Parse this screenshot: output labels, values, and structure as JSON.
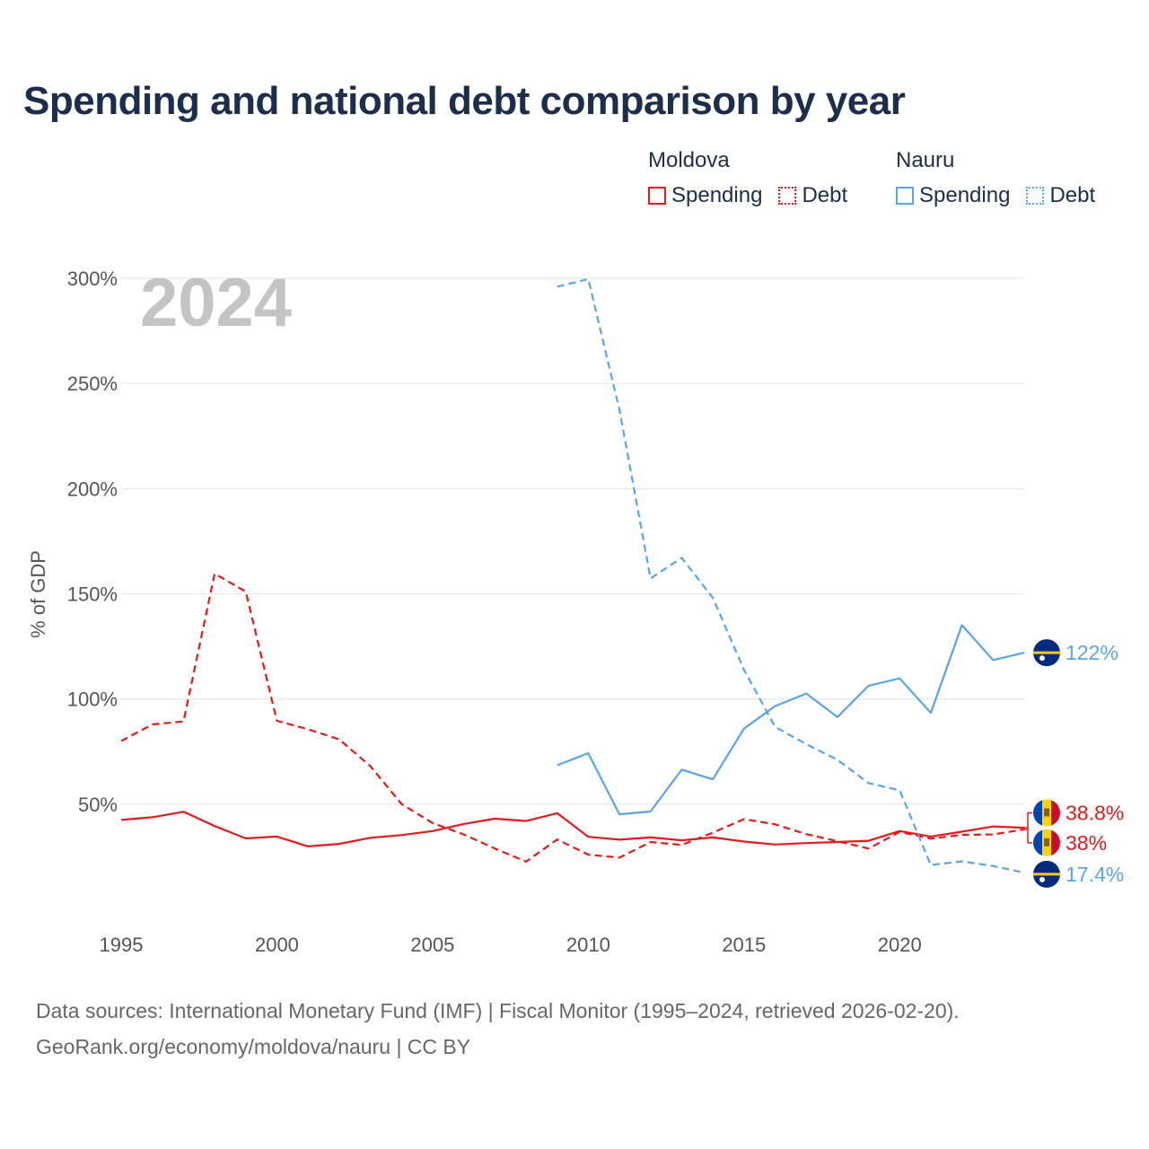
{
  "header": {
    "title": "Spending and national debt comparison by year"
  },
  "legend": {
    "moldova": {
      "name": "Moldova",
      "spending_label": "Spending",
      "debt_label": "Debt",
      "color": "#e8191b"
    },
    "nauru": {
      "name": "Nauru",
      "spending_label": "Spending",
      "debt_label": "Debt",
      "color": "#5ba4e6"
    }
  },
  "footer": {
    "line1": "Data sources: International Monetary Fund (IMF) | Fiscal Monitor (1995–2024, retrieved 2026-02-20).",
    "line2": "GeoRank.org/economy/moldova/nauru | CC BY"
  },
  "chart_data": {
    "type": "line",
    "year_watermark": "2024",
    "ylabel": "% of GDP",
    "xlim": [
      1995,
      2024
    ],
    "ylim": [
      0,
      310
    ],
    "x_ticks": [
      1995,
      2000,
      2005,
      2010,
      2015,
      2020
    ],
    "x_tick_labels": [
      "1995",
      "2000",
      "2005",
      "2010",
      "2015",
      "2020"
    ],
    "y_ticks": [
      50,
      100,
      150,
      200,
      250,
      300
    ],
    "y_tick_labels": [
      "50%",
      "100%",
      "150%",
      "200%",
      "250%",
      "300%"
    ],
    "series": [
      {
        "name": "Moldova Spending",
        "country": "moldova",
        "style": "solid",
        "color": "#e8191b",
        "x": [
          1995,
          1996,
          1997,
          1998,
          1999,
          2000,
          2001,
          2002,
          2003,
          2004,
          2005,
          2006,
          2007,
          2008,
          2009,
          2010,
          2011,
          2012,
          2013,
          2014,
          2015,
          2016,
          2017,
          2018,
          2019,
          2020,
          2021,
          2022,
          2023,
          2024
        ],
        "values": [
          42.5,
          43.8,
          46.4,
          39.6,
          33.7,
          34.6,
          29.9,
          31.1,
          34.0,
          35.3,
          37.2,
          40.6,
          43.1,
          42.0,
          45.7,
          34.5,
          33.1,
          34.2,
          32.8,
          34.2,
          32.2,
          30.8,
          31.5,
          32.0,
          32.6,
          37.2,
          34.6,
          36.9,
          39.4,
          38.8
        ]
      },
      {
        "name": "Moldova Debt",
        "country": "moldova",
        "style": "dashed",
        "color": "#e8191b",
        "x": [
          1995,
          1996,
          1997,
          1998,
          1999,
          2000,
          2001,
          2002,
          2003,
          2004,
          2005,
          2006,
          2007,
          2008,
          2009,
          2010,
          2011,
          2012,
          2013,
          2014,
          2015,
          2016,
          2017,
          2018,
          2019,
          2020,
          2021,
          2022,
          2023,
          2024
        ],
        "values": [
          80.0,
          87.9,
          89.3,
          159.6,
          151.0,
          89.6,
          85.6,
          80.8,
          68.1,
          50.1,
          41.0,
          35.6,
          28.9,
          22.7,
          33.2,
          26.0,
          24.6,
          32.0,
          30.6,
          36.5,
          42.9,
          40.4,
          35.7,
          32.4,
          28.9,
          36.8,
          33.6,
          35.4,
          35.6,
          38.0
        ]
      },
      {
        "name": "Nauru Spending",
        "country": "nauru",
        "style": "solid",
        "color": "#5ba4e6",
        "x": [
          2009,
          2010,
          2011,
          2012,
          2013,
          2014,
          2015,
          2016,
          2017,
          2018,
          2019,
          2020,
          2021,
          2022,
          2023,
          2024
        ],
        "values": [
          68.5,
          74.2,
          45.2,
          46.5,
          66.4,
          61.8,
          85.9,
          96.6,
          102.6,
          91.4,
          106.3,
          109.8,
          93.4,
          135.1,
          118.5,
          122.0
        ]
      },
      {
        "name": "Nauru Debt",
        "country": "nauru",
        "style": "dashed",
        "color": "#5ba4e6",
        "x": [
          2009,
          2010,
          2011,
          2012,
          2013,
          2014,
          2015,
          2016,
          2017,
          2018,
          2019,
          2020,
          2021,
          2022,
          2023,
          2024
        ],
        "values": [
          296.0,
          299.6,
          237.6,
          157.3,
          167.1,
          148.1,
          113.9,
          86.7,
          78.5,
          71.1,
          60.0,
          56.6,
          21.1,
          22.8,
          20.6,
          17.4
        ]
      }
    ],
    "end_labels": [
      {
        "series": "Nauru Spending",
        "text": "122%",
        "value": 122.0,
        "color": "#5ba4e6",
        "flag": "nauru-flag-icon"
      },
      {
        "series": "Moldova Spending",
        "text": "38.8%",
        "value": 38.8,
        "color": "#e8191b",
        "flag": "moldova-flag-icon"
      },
      {
        "series": "Moldova Debt",
        "text": "38%",
        "value": 38.0,
        "color": "#e8191b",
        "flag": "moldova-flag-icon"
      },
      {
        "series": "Nauru Debt",
        "text": "17.4%",
        "value": 17.4,
        "color": "#5ba4e6",
        "flag": "nauru-flag-icon"
      }
    ]
  }
}
